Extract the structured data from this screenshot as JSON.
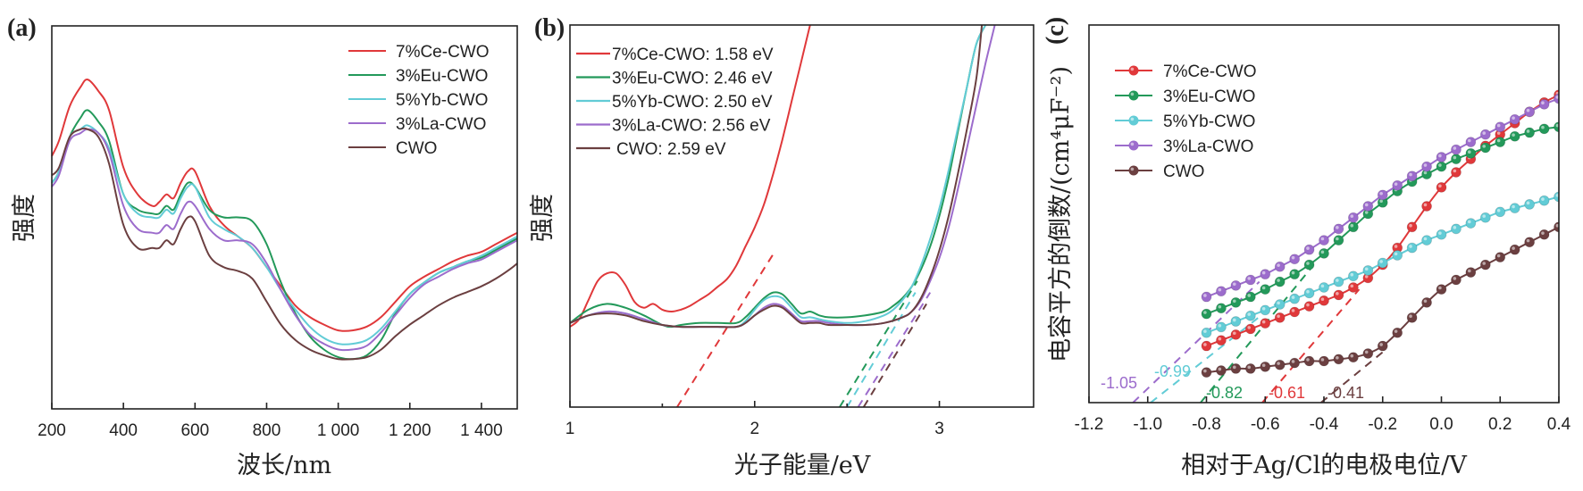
{
  "colors": {
    "7%Ce-CWO": "#e0383a",
    "3%Eu-CWO": "#23995a",
    "5%Yb-CWO": "#62ccd6",
    "3%La-CWO": "#9c6ccc",
    "CWO": "#6b3f40"
  },
  "chart_data": [
    {
      "panel": "(a)",
      "type": "line",
      "title": "",
      "xlabel": "波长/nm",
      "ylabel": "强度",
      "xlim": [
        200,
        1500
      ],
      "ylim": [
        0,
        100
      ],
      "xticks": [
        200,
        400,
        600,
        800,
        1000,
        1200,
        1400
      ],
      "xtick_labels": [
        "200",
        "400",
        "600",
        "800",
        "1 000",
        "1 200",
        "1 400"
      ],
      "yticks": [],
      "grid": false,
      "legend_position": "top-right",
      "x": [
        200,
        220,
        250,
        280,
        300,
        330,
        360,
        400,
        440,
        480,
        500,
        520,
        540,
        560,
        580,
        600,
        640,
        680,
        720,
        760,
        800,
        840,
        880,
        920,
        960,
        1000,
        1040,
        1080,
        1120,
        1160,
        1200,
        1240,
        1280,
        1320,
        1360,
        1400,
        1440,
        1480,
        1500
      ],
      "series": [
        {
          "name": "7%Ce-CWO",
          "values": [
            66,
            70,
            79,
            84,
            86,
            83,
            78,
            63,
            56,
            53,
            54,
            56,
            55,
            59,
            62,
            62,
            53,
            48,
            45,
            42,
            37,
            32,
            27,
            24,
            22,
            20.5,
            20.5,
            21.5,
            24,
            28,
            32,
            34.5,
            36.5,
            38.5,
            40,
            41,
            43,
            45,
            46
          ]
        },
        {
          "name": "3%Eu-CWO",
          "values": [
            59,
            62,
            71,
            76,
            78,
            75,
            70,
            56,
            52,
            51,
            51,
            53,
            52,
            56,
            59,
            58,
            52,
            50,
            50,
            49,
            43,
            33,
            25,
            19,
            15.5,
            13.5,
            13,
            14,
            18,
            25,
            30,
            33,
            35.5,
            37,
            38.5,
            39.5,
            41.5,
            43.5,
            44.5
          ]
        },
        {
          "name": "5%Yb-CWO",
          "values": [
            59,
            62,
            71,
            73,
            74,
            72,
            68,
            56,
            51,
            50,
            50,
            52,
            51,
            55,
            58,
            58,
            50,
            47,
            45,
            42,
            37,
            31,
            26,
            21.5,
            18.5,
            17,
            17,
            18,
            21,
            25.5,
            30,
            33,
            35.5,
            37,
            38.5,
            40,
            42,
            44,
            45
          ]
        },
        {
          "name": "3%La-CWO",
          "values": [
            58,
            61,
            70,
            72,
            73,
            72,
            67,
            53,
            47,
            46,
            46,
            48,
            47,
            51,
            54,
            53,
            47,
            44,
            44,
            43,
            38,
            31,
            24.5,
            19.5,
            17,
            15.5,
            15.5,
            16.5,
            20,
            24.5,
            29,
            32.5,
            34.5,
            36.5,
            38,
            39,
            41,
            43,
            44
          ]
        },
        {
          "name": "CWO",
          "values": [
            61,
            63,
            71,
            73,
            73,
            71,
            64,
            48,
            42,
            42,
            42,
            44,
            43,
            47,
            50,
            49,
            40,
            37,
            36,
            34,
            28,
            22,
            18,
            15.5,
            14,
            13,
            13,
            13.5,
            15.5,
            19,
            22,
            24.5,
            27,
            29,
            30.5,
            32,
            34,
            36.5,
            38
          ]
        }
      ]
    },
    {
      "panel": "(b)",
      "type": "line",
      "title": "",
      "xlabel": "光子能量/eV",
      "ylabel": "强度",
      "xlim": [
        1,
        3.51
      ],
      "ylim": [
        0,
        100
      ],
      "xticks": [
        1,
        2,
        3
      ],
      "xtick_labels": [
        "1",
        "2",
        "3"
      ],
      "minor_xticks": [
        1.5,
        2.5
      ],
      "yticks": [],
      "grid": false,
      "legend_position": "top-left",
      "series": [
        {
          "name": "7%Ce-CWO",
          "label": "7%Ce-CWO: 1.58 eV",
          "bandgap_eV": 1.58,
          "x": [
            1.0,
            1.05,
            1.1,
            1.15,
            1.2,
            1.25,
            1.3,
            1.35,
            1.4,
            1.45,
            1.5,
            1.55,
            1.6,
            1.65,
            1.7,
            1.75,
            1.8,
            1.85,
            1.9,
            1.95,
            2.0,
            2.05,
            2.1,
            2.15,
            2.2,
            2.25,
            2.3
          ],
          "values": [
            21,
            23,
            28,
            33,
            35,
            35,
            32,
            27.5,
            26,
            27,
            25.5,
            25,
            25.5,
            26.5,
            28,
            29.5,
            31.5,
            33.5,
            37,
            42,
            47,
            53,
            61,
            70,
            80,
            90,
            100
          ],
          "fit_line": {
            "x": [
              1.58,
              2.1
            ],
            "y": [
              0,
              40
            ]
          }
        },
        {
          "name": "3%Eu-CWO",
          "label": "3%Eu-CWO: 2.46 eV",
          "bandgap_eV": 2.46,
          "x": [
            1.0,
            1.1,
            1.2,
            1.3,
            1.4,
            1.5,
            1.55,
            1.6,
            1.7,
            1.8,
            1.9,
            1.95,
            2.0,
            2.05,
            2.1,
            2.15,
            2.2,
            2.25,
            2.3,
            2.35,
            2.4,
            2.5,
            2.6,
            2.7,
            2.75,
            2.8,
            2.85,
            2.9,
            2.95,
            3.0,
            3.05,
            3.1,
            3.15,
            3.2,
            3.25
          ],
          "values": [
            22,
            25.5,
            27,
            26,
            24,
            21.5,
            21,
            21.5,
            22,
            22,
            22,
            23.5,
            26,
            28.5,
            30,
            29.5,
            27,
            24.5,
            25,
            24,
            23.5,
            23.5,
            24,
            25,
            26.5,
            28.5,
            31.5,
            36,
            42,
            50,
            60,
            72,
            84,
            95,
            100
          ],
          "fit_line": {
            "x": [
              2.46,
              2.88
            ],
            "y": [
              0,
              33
            ]
          }
        },
        {
          "name": "5%Yb-CWO",
          "label": "5%Yb-CWO: 2.50 eV",
          "bandgap_eV": 2.5,
          "x": [
            1.0,
            1.1,
            1.2,
            1.3,
            1.4,
            1.5,
            1.6,
            1.7,
            1.8,
            1.9,
            1.95,
            2.0,
            2.05,
            2.1,
            2.15,
            2.2,
            2.25,
            2.3,
            2.35,
            2.4,
            2.5,
            2.6,
            2.7,
            2.75,
            2.8,
            2.85,
            2.9,
            2.95,
            3.0,
            3.05,
            3.1,
            3.15,
            3.2,
            3.25
          ],
          "values": [
            22,
            24,
            25,
            24.5,
            23,
            21.5,
            21,
            21,
            21,
            21,
            22.5,
            25.5,
            28,
            29,
            28.5,
            26,
            23.5,
            23.5,
            23,
            22.5,
            22,
            22.5,
            24,
            25.5,
            28,
            31.5,
            37,
            44,
            52,
            62,
            73,
            84,
            95,
            100
          ],
          "fit_line": {
            "x": [
              2.5,
              2.87
            ],
            "y": [
              0,
              30
            ]
          }
        },
        {
          "name": "3%La-CWO",
          "label": "3%La-CWO: 2.56 eV",
          "bandgap_eV": 2.56,
          "x": [
            1.0,
            1.1,
            1.2,
            1.3,
            1.4,
            1.5,
            1.6,
            1.7,
            1.8,
            1.9,
            1.95,
            2.0,
            2.05,
            2.1,
            2.15,
            2.2,
            2.25,
            2.3,
            2.35,
            2.4,
            2.5,
            2.6,
            2.7,
            2.8,
            2.85,
            2.9,
            2.95,
            3.0,
            3.05,
            3.1,
            3.15,
            3.2,
            3.25,
            3.3
          ],
          "values": [
            22,
            24,
            25,
            24.5,
            23,
            21.5,
            21,
            21,
            21,
            21,
            22,
            24,
            26,
            27,
            26.5,
            24.5,
            22.5,
            22.5,
            22.5,
            22,
            21.5,
            21.5,
            22,
            23.5,
            25,
            28,
            33,
            39,
            47,
            57,
            68,
            79,
            90,
            100
          ],
          "fit_line": {
            "x": [
              2.56,
              2.95
            ],
            "y": [
              0,
              30
            ]
          }
        },
        {
          "name": "CWO",
          "label": "CWO: 2.59 eV",
          "bandgap_eV": 2.59,
          "x": [
            1.0,
            1.1,
            1.2,
            1.3,
            1.4,
            1.5,
            1.6,
            1.7,
            1.8,
            1.9,
            1.95,
            2.0,
            2.05,
            2.1,
            2.15,
            2.2,
            2.25,
            2.3,
            2.35,
            2.4,
            2.5,
            2.6,
            2.7,
            2.8,
            2.85,
            2.9,
            2.95,
            3.0,
            3.05,
            3.1,
            3.15,
            3.2,
            3.23
          ],
          "values": [
            22,
            24,
            24.5,
            24,
            22.5,
            21.5,
            21,
            21,
            21,
            21,
            22,
            24,
            25.5,
            26.5,
            26,
            24,
            22,
            22,
            22,
            21.5,
            21.5,
            21.5,
            22,
            23.5,
            25,
            28.5,
            34,
            41,
            50,
            61,
            73,
            86,
            100
          ],
          "fit_line": {
            "x": [
              2.59,
              2.93
            ],
            "y": [
              0,
              27
            ]
          }
        }
      ]
    },
    {
      "panel": "(c)",
      "type": "line",
      "title": "",
      "xlabel": "相对于Ag/Cl的电极电位/V",
      "ylabel": "电容平方的倒数/(cm⁴μF⁻²)",
      "xlim": [
        -1.2,
        0.4
      ],
      "ylim": [
        0,
        100
      ],
      "xticks": [
        -1.2,
        -1.0,
        -0.8,
        -0.6,
        -0.4,
        -0.2,
        0.0,
        0.2,
        0.4
      ],
      "xtick_labels": [
        "-1.2",
        "-1.0",
        "-0.8",
        "-0.6",
        "-0.4",
        "-0.2",
        "0.0",
        "0.2",
        "0.4"
      ],
      "yticks": [],
      "grid": false,
      "legend_position": "top-left",
      "markers": "circle",
      "x": [
        -0.8,
        -0.75,
        -0.7,
        -0.65,
        -0.6,
        -0.55,
        -0.5,
        -0.45,
        -0.4,
        -0.35,
        -0.3,
        -0.25,
        -0.2,
        -0.15,
        -0.1,
        -0.05,
        0.0,
        0.05,
        0.1,
        0.15,
        0.2,
        0.25,
        0.3,
        0.35,
        0.4
      ],
      "series": [
        {
          "name": "7%Ce-CWO",
          "flatband_V": -0.61,
          "annotation": "-0.61",
          "values": [
            15,
            16.5,
            18,
            19.5,
            21,
            22.5,
            24,
            25.5,
            27,
            28.5,
            30.5,
            33,
            36.5,
            41,
            46.5,
            52,
            57,
            61,
            64.5,
            68,
            71,
            74,
            77,
            79.5,
            81.5
          ],
          "fit_line": {
            "x": [
              -0.61,
              -0.28
            ],
            "y": [
              0,
              30
            ]
          }
        },
        {
          "name": "3%Eu-CWO",
          "flatband_V": -0.82,
          "annotation": "-0.82",
          "values": [
            23.5,
            25,
            26.5,
            28,
            30,
            32,
            34,
            36.5,
            39.5,
            43,
            46.5,
            50,
            53,
            56,
            58.5,
            60.5,
            62.5,
            64.5,
            66,
            67.5,
            69,
            70.5,
            71.5,
            72.5,
            73
          ]
        },
        {
          "name": "5%Yb-CWO",
          "flatband_V": -0.99,
          "annotation": "-0.99",
          "values": [
            18.5,
            20,
            21.5,
            23,
            24.5,
            26,
            27.5,
            29,
            30.5,
            32,
            33.5,
            35,
            37,
            39,
            41,
            43,
            44.5,
            46,
            47.5,
            49,
            50.5,
            51.5,
            52.5,
            53.5,
            54.5
          ],
          "fit_line": {
            "x": [
              -0.99,
              -0.55
            ],
            "y": [
              0,
              27
            ]
          }
        },
        {
          "name": "3%La-CWO",
          "flatband_V": -1.05,
          "annotation": "-1.05",
          "values": [
            28,
            29.5,
            31,
            32.5,
            34,
            36,
            38,
            40.5,
            43,
            46,
            49,
            52,
            55,
            57.5,
            60,
            62.5,
            65,
            67,
            69,
            71,
            73,
            75,
            77,
            79,
            80.5
          ],
          "fit_line": {
            "x": [
              -1.05,
              -0.62
            ],
            "y": [
              0,
              32
            ]
          }
        },
        {
          "name": "CWO",
          "flatband_V": -0.41,
          "annotation": "-0.41",
          "values": [
            8,
            8.5,
            9,
            9,
            9.5,
            10,
            10.5,
            11,
            11,
            11.5,
            12,
            13,
            15,
            18.5,
            22.5,
            26.5,
            30,
            32.5,
            34.5,
            36.5,
            38.5,
            40.5,
            42.5,
            44.5,
            46.5
          ],
          "fit_line": {
            "x": [
              -0.41,
              -0.19
            ],
            "y": [
              0,
              14
            ]
          }
        }
      ]
    }
  ],
  "eu_fit_line": {
    "x": [
      -0.82,
      -0.44
    ],
    "y": [
      0,
      36
    ]
  },
  "labels": {
    "panel_a": "(a)",
    "panel_b": "(b)",
    "panel_c": "(c)"
  }
}
